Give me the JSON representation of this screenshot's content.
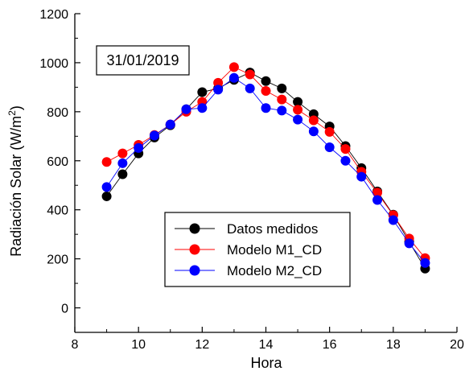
{
  "chart_data": {
    "type": "line",
    "title": "",
    "xlabel": "Hora",
    "ylabel_main": "Radiación Solar (W/m",
    "ylabel_sup": "2",
    "ylabel_close": ")",
    "xlim": [
      8,
      20
    ],
    "ylim": [
      -100,
      1200
    ],
    "xticks": [
      8,
      10,
      12,
      14,
      16,
      18,
      20
    ],
    "yticks": [
      0,
      200,
      400,
      600,
      800,
      1000,
      1200
    ],
    "annotation": "31/01/2019",
    "legend_position": "bottom-center",
    "x": [
      9,
      9.5,
      10,
      10.5,
      11,
      11.5,
      12,
      12.5,
      13,
      13.5,
      14,
      14.5,
      15,
      15.5,
      16,
      16.5,
      17,
      17.5,
      18,
      18.5,
      19
    ],
    "series": [
      {
        "name": "Datos medidos",
        "color": "#000000",
        "values": [
          455,
          545,
          630,
          695,
          745,
          810,
          880,
          895,
          930,
          960,
          925,
          895,
          840,
          790,
          740,
          660,
          570,
          475,
          380,
          270,
          160
        ]
      },
      {
        "name": "Modelo M1_CD",
        "color": "#ff0000",
        "values": [
          595,
          630,
          665,
          705,
          748,
          800,
          840,
          918,
          982,
          952,
          885,
          850,
          808,
          765,
          718,
          648,
          555,
          470,
          378,
          283,
          203
        ]
      },
      {
        "name": "Modelo M2_CD",
        "color": "#0000ff",
        "values": [
          493,
          590,
          652,
          703,
          748,
          810,
          815,
          890,
          938,
          895,
          815,
          805,
          768,
          720,
          655,
          600,
          535,
          440,
          358,
          263,
          183
        ]
      }
    ]
  }
}
